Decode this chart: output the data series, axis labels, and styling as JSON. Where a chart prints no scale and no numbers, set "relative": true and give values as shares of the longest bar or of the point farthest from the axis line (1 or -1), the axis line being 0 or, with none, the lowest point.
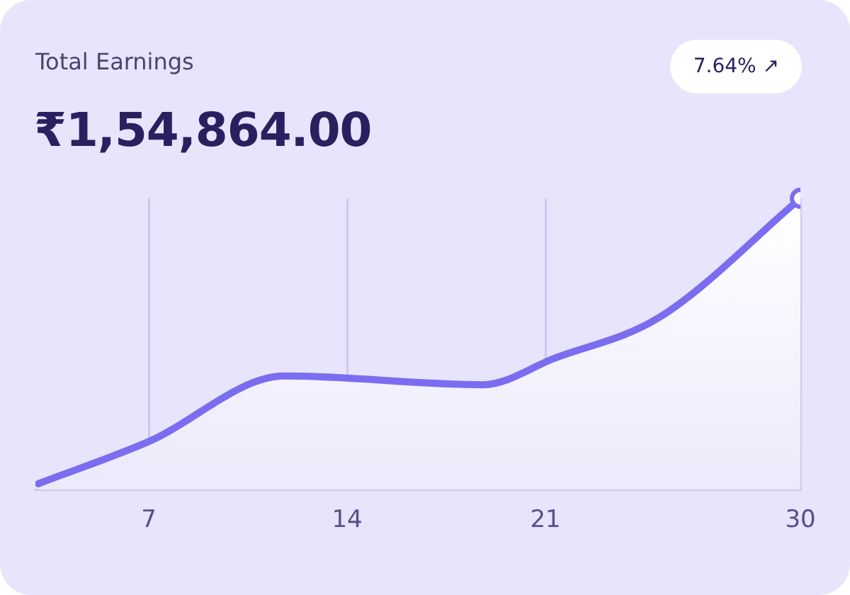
{
  "chart_data": {
    "type": "area",
    "title": "Total Earnings",
    "subtitle": "₹1,54,864.00",
    "annotations": [
      "7.64% ↗"
    ],
    "x": [
      3.1,
      7,
      11.8,
      18.8,
      21.3,
      25,
      30
    ],
    "series": [
      {
        "color": "#7c6cf0",
        "values": [
          0.02,
          0.165,
          0.39,
          0.36,
          0.45,
          0.59,
          1
        ]
      }
    ],
    "relative": true,
    "xlim": [
      3,
      30
    ],
    "xticks": [
      7,
      14,
      21,
      30
    ],
    "grid": "x",
    "legend": false,
    "line_style": "solid"
  }
}
